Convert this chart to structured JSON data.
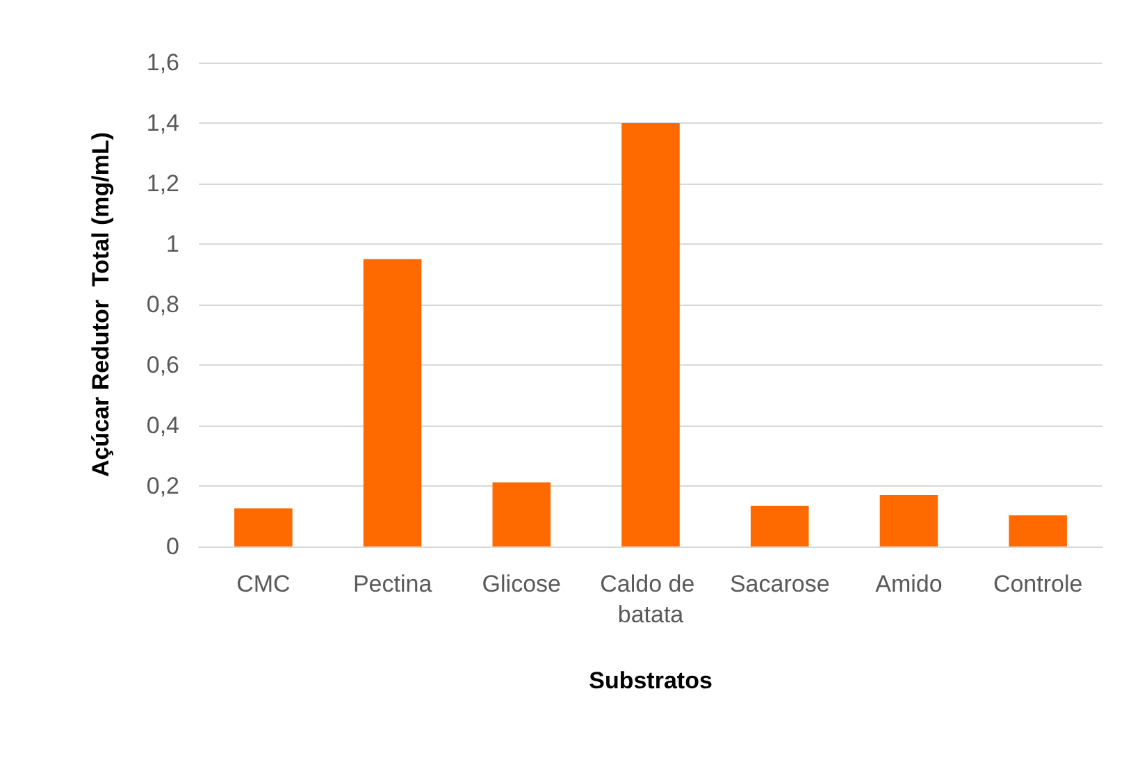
{
  "chart_data": {
    "type": "bar",
    "xlabel": "Substratos",
    "ylabel": "Açúcar Redutor  Total (mg/mL)",
    "categories": [
      "CMC",
      "Pectina",
      "Glicose",
      "Caldo de batata",
      "Sacarose",
      "Amido",
      "Controle"
    ],
    "values": [
      0.126,
      0.95,
      0.212,
      1.4,
      0.134,
      0.17,
      0.103
    ],
    "color": "#ff6a00",
    "ylim": [
      0,
      1.6
    ],
    "yticks": [
      0,
      {
        "value": 0.2,
        "label": "0,2"
      },
      {
        "value": 0.4,
        "label": "0,4"
      },
      {
        "value": 0.6,
        "label": "0,6"
      },
      {
        "value": 0.8,
        "label": "0,8"
      },
      1,
      {
        "value": 1.2,
        "label": "1,2"
      },
      {
        "value": 1.4,
        "label": "1,4"
      },
      {
        "value": 1.6,
        "label": "1,6"
      }
    ],
    "grid": "y"
  }
}
